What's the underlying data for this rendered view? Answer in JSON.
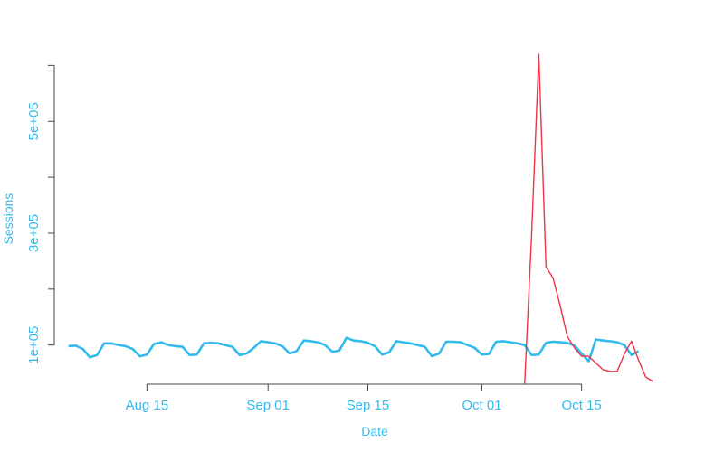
{
  "chart_data": {
    "type": "line",
    "xlabel": "Date",
    "ylabel": "Sessions",
    "x_ticks": [
      "Aug 15",
      "Sep 01",
      "Sep 15",
      "Oct 01",
      "Oct 15"
    ],
    "x_tick_dates": [
      "2015-08-15",
      "2015-09-01",
      "2015-09-15",
      "2015-10-01",
      "2015-10-15"
    ],
    "y_ticks": [
      "1e+05",
      "3e+05",
      "5e+05"
    ],
    "y_tick_values": [
      100000,
      300000,
      500000
    ],
    "y_minor_ticks": [
      100000,
      200000,
      300000,
      400000,
      500000,
      600000
    ],
    "ylim": [
      30000,
      620000
    ],
    "xlim": [
      "2015-08-02",
      "2015-10-28"
    ],
    "colors": {
      "series_a": "#33bbee",
      "series_b": "#ee3344",
      "axis_text": "#33bbee",
      "axis_line": "#444444"
    },
    "series": [
      {
        "color": "#33bbee",
        "start": "2015-08-04",
        "values": [
          98000,
          99000,
          93000,
          78000,
          82000,
          103000,
          103000,
          100000,
          98000,
          93000,
          80000,
          83000,
          102000,
          105000,
          100000,
          98000,
          97000,
          82000,
          83000,
          103000,
          104000,
          103000,
          100000,
          97000,
          82000,
          85000,
          95000,
          107000,
          105000,
          103000,
          98000,
          85000,
          89000,
          108000,
          107000,
          105000,
          100000,
          88000,
          90000,
          113000,
          108000,
          107000,
          104000,
          98000,
          83000,
          87000,
          107000,
          105000,
          103000,
          100000,
          97000,
          80000,
          85000,
          106000,
          106000,
          105000,
          100000,
          95000,
          83000,
          84000,
          106000,
          107000,
          105000,
          103000,
          100000,
          82000,
          83000,
          104000,
          106000,
          105000,
          104000,
          99000,
          85000,
          71000,
          110000,
          108000,
          107000,
          105000,
          100000,
          82000,
          89000
        ]
      },
      {
        "color": "#ee3344",
        "start": "2015-10-07",
        "values": [
          30000,
          300000,
          620000,
          240000,
          220000,
          170000,
          115000,
          95000,
          80000,
          80000,
          68000,
          56000,
          53000,
          53000,
          84000,
          107000,
          73000,
          43000,
          35000
        ]
      }
    ]
  }
}
